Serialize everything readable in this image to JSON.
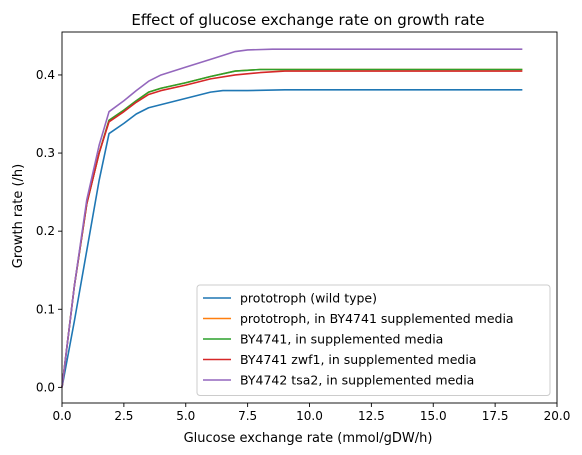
{
  "chart_data": {
    "type": "line",
    "title": "Effect of glucose exchange rate on growth rate",
    "xlabel": "Glucose exchange rate (mmol/gDW/h)",
    "ylabel": "Growth rate (/h)",
    "xlim": [
      0,
      20
    ],
    "ylim": [
      -0.02,
      0.455
    ],
    "xticks": [
      0,
      2.5,
      5,
      7.5,
      10,
      12.5,
      15,
      17.5,
      20
    ],
    "xtick_labels": [
      "0.0",
      "2.5",
      "5.0",
      "7.5",
      "10.0",
      "12.5",
      "15.0",
      "17.5",
      "20.0"
    ],
    "yticks": [
      0,
      0.1,
      0.2,
      0.3,
      0.4
    ],
    "ytick_labels": [
      "0.0",
      "0.1",
      "0.2",
      "0.3",
      "0.4"
    ],
    "grid": false,
    "legend_position": "bottom-right",
    "series": [
      {
        "name": "prototroph (wild type)",
        "color": "#1f77b4",
        "x": [
          0,
          0.5,
          1.0,
          1.5,
          1.9,
          2.5,
          3.0,
          3.5,
          4.0,
          5.0,
          6.0,
          6.5,
          7.5,
          9.0,
          12.0,
          15.0,
          18.6
        ],
        "y": [
          0,
          0.085,
          0.175,
          0.265,
          0.325,
          0.338,
          0.35,
          0.358,
          0.362,
          0.37,
          0.378,
          0.38,
          0.38,
          0.381,
          0.381,
          0.381,
          0.381
        ]
      },
      {
        "name": "prototroph, in BY4741 supplemented media",
        "color": "#ff7f0e",
        "x": [
          0,
          0.5,
          1.0,
          1.5,
          1.9,
          2.5,
          3.0,
          3.5,
          4.0,
          5.0,
          6.0,
          7.0,
          8.0,
          10.0,
          12.0,
          15.0,
          18.6
        ],
        "y": [
          0,
          0.13,
          0.235,
          0.3,
          0.342,
          0.355,
          0.367,
          0.378,
          0.383,
          0.39,
          0.398,
          0.405,
          0.407,
          0.407,
          0.407,
          0.407,
          0.407
        ]
      },
      {
        "name": "BY4741, in supplemented media",
        "color": "#2ca02c",
        "x": [
          0,
          0.5,
          1.0,
          1.5,
          1.9,
          2.5,
          3.0,
          3.5,
          4.0,
          5.0,
          6.0,
          7.0,
          8.0,
          10.0,
          12.0,
          15.0,
          18.6
        ],
        "y": [
          0,
          0.13,
          0.235,
          0.3,
          0.342,
          0.355,
          0.367,
          0.378,
          0.383,
          0.39,
          0.398,
          0.405,
          0.407,
          0.407,
          0.407,
          0.407,
          0.407
        ]
      },
      {
        "name": "BY4741 zwf1, in supplemented media",
        "color": "#d62728",
        "x": [
          0,
          0.5,
          1.0,
          1.5,
          1.9,
          2.5,
          3.0,
          3.5,
          4.0,
          5.0,
          6.0,
          7.0,
          8.0,
          9.0,
          10.0,
          12.0,
          15.0,
          18.6
        ],
        "y": [
          0,
          0.13,
          0.235,
          0.3,
          0.34,
          0.353,
          0.365,
          0.375,
          0.38,
          0.387,
          0.395,
          0.4,
          0.403,
          0.405,
          0.405,
          0.405,
          0.405,
          0.405
        ]
      },
      {
        "name": "BY4742 tsa2, in supplemented media",
        "color": "#9467bd",
        "x": [
          0,
          0.5,
          1.0,
          1.5,
          1.9,
          2.5,
          3.0,
          3.5,
          4.0,
          5.0,
          6.0,
          7.0,
          7.5,
          8.5,
          10.0,
          12.0,
          15.0,
          18.6
        ],
        "y": [
          0,
          0.13,
          0.24,
          0.31,
          0.353,
          0.367,
          0.38,
          0.392,
          0.4,
          0.41,
          0.42,
          0.43,
          0.432,
          0.433,
          0.433,
          0.433,
          0.433,
          0.433
        ]
      }
    ]
  }
}
